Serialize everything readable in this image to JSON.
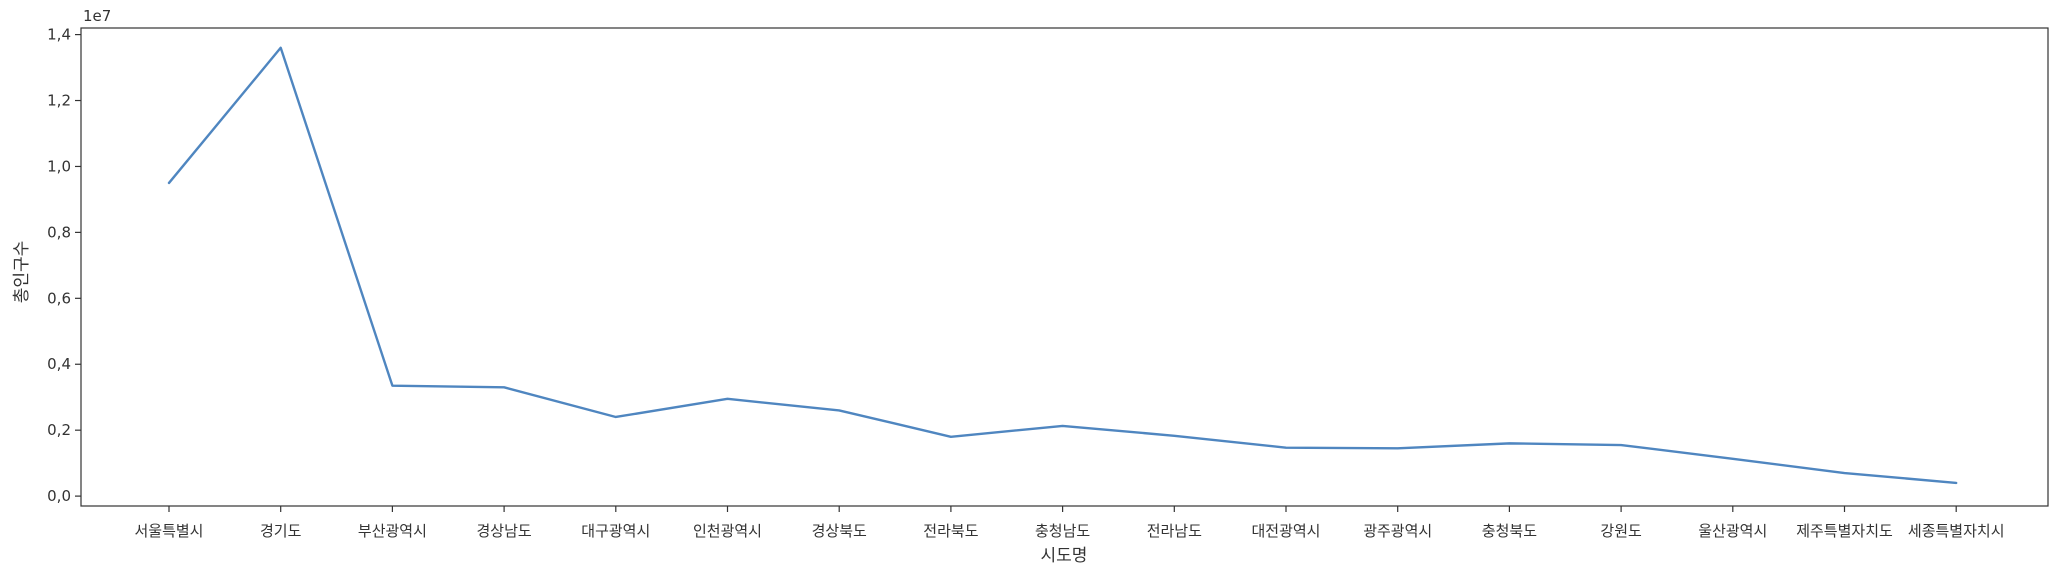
{
  "chart_data": {
    "type": "line",
    "xlabel": "시도명",
    "ylabel": "총인구수",
    "offset_text": "1e7",
    "ylim": [
      -0.03,
      1.42
    ],
    "y_ticks": [
      0.0,
      0.2,
      0.4,
      0.6,
      0.8,
      1.0,
      1.2,
      1.4
    ],
    "y_tick_labels": [
      "0,0",
      "0,2",
      "0,4",
      "0,6",
      "0,8",
      "1,0",
      "1,2",
      "1,4"
    ],
    "grid": false,
    "line_color": "#4f86c0",
    "categories": [
      "서울특별시",
      "경기도",
      "부산광역시",
      "경상남도",
      "대구광역시",
      "인천광역시",
      "경상북도",
      "전라북도",
      "충청남도",
      "전라남도",
      "대전광역시",
      "광주광역시",
      "충청북도",
      "강원도",
      "울산광역시",
      "제주특별자치도",
      "세종특별자치시"
    ],
    "series": [
      {
        "values": [
          0.95,
          1.36,
          0.335,
          0.33,
          0.24,
          0.295,
          0.26,
          0.18,
          0.213,
          0.183,
          0.147,
          0.145,
          0.16,
          0.155,
          0.113,
          0.07,
          0.04
        ]
      }
    ]
  }
}
